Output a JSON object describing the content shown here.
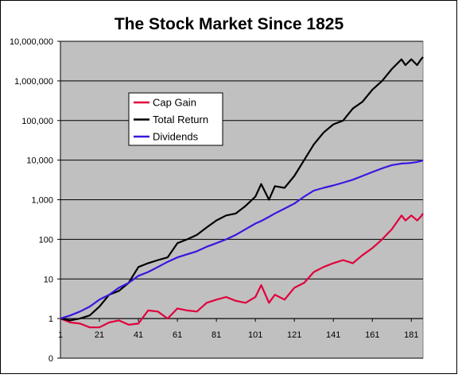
{
  "chart_data": {
    "type": "line",
    "title": "The Stock Market Since 1825",
    "log_scale": true,
    "grid": true,
    "legend_position": "upper left",
    "xaxis_crosses_at": 1,
    "xlim": [
      1,
      187
    ],
    "xticks": [
      1,
      21,
      41,
      61,
      81,
      101,
      121,
      141,
      161,
      181
    ],
    "ylim": [
      0.1,
      10000000
    ],
    "yticks": [
      {
        "value": 0.1,
        "label": "0"
      },
      1,
      10,
      100,
      {
        "value": 1000,
        "label": "1,000"
      },
      {
        "value": 10000,
        "label": "10,000"
      },
      {
        "value": 100000,
        "label": "100,000"
      },
      {
        "value": 1000000,
        "label": "1,000,000"
      },
      {
        "value": 10000000,
        "label": "10,000,000"
      }
    ],
    "x": [
      1,
      6,
      11,
      16,
      21,
      26,
      31,
      36,
      41,
      46,
      51,
      56,
      61,
      66,
      71,
      76,
      81,
      86,
      91,
      96,
      101,
      104,
      108,
      111,
      116,
      121,
      126,
      131,
      136,
      141,
      146,
      151,
      156,
      161,
      166,
      171,
      176,
      178,
      181,
      184,
      186,
      187
    ],
    "series": [
      {
        "name": "Cap Gain",
        "color": "#e0003c",
        "values": [
          1,
          0.8,
          0.75,
          0.6,
          0.6,
          0.8,
          0.9,
          0.7,
          0.75,
          1.6,
          1.5,
          1.0,
          1.8,
          1.6,
          1.5,
          2.5,
          3,
          3.5,
          2.8,
          2.5,
          3.5,
          7,
          2.5,
          4,
          3,
          6,
          8,
          15,
          20,
          25,
          30,
          25,
          40,
          60,
          100,
          180,
          400,
          300,
          400,
          300,
          380,
          450
        ]
      },
      {
        "name": "Total Return",
        "color": "#000000",
        "values": [
          1,
          0.9,
          1,
          1.2,
          2,
          4,
          5,
          8,
          20,
          25,
          30,
          35,
          80,
          100,
          130,
          200,
          300,
          400,
          450,
          700,
          1200,
          2500,
          1000,
          2200,
          2000,
          4000,
          10000,
          25000,
          50000,
          80000,
          100000,
          200000,
          300000,
          600000,
          1000000,
          2000000,
          3500000,
          2500000,
          3500000,
          2500000,
          3500000,
          4000000
        ]
      },
      {
        "name": "Dividends",
        "color": "#3c14e0",
        "values": [
          1,
          1.2,
          1.5,
          2,
          3,
          4,
          6,
          8,
          12,
          15,
          20,
          27,
          35,
          42,
          50,
          65,
          80,
          100,
          130,
          180,
          250,
          290,
          370,
          450,
          600,
          800,
          1200,
          1700,
          2000,
          2300,
          2700,
          3200,
          4000,
          5000,
          6200,
          7500,
          8200,
          8300,
          8500,
          9000,
          9500,
          10000
        ]
      }
    ]
  }
}
